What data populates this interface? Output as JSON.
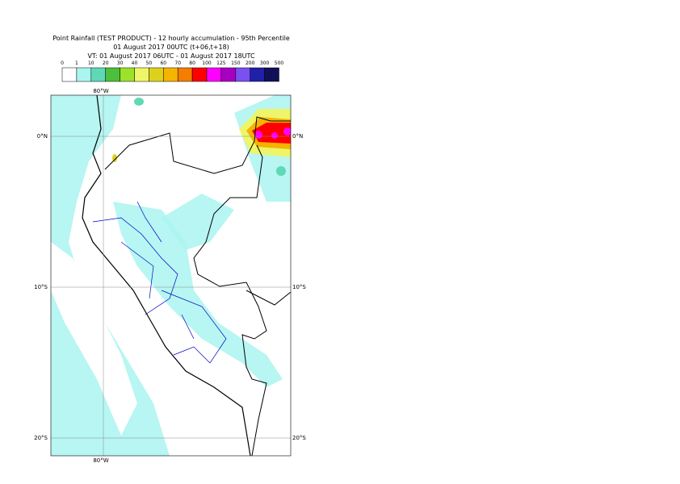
{
  "header": {
    "title_lines": [
      "Point Rainfall (TEST PRODUCT) - 12 hourly accumulation - 95th Percentile",
      "01 August 2017 00UTC (t+06,t+18)",
      "VT: 01 August 2017 06UTC - 01 August 2017 18UTC"
    ]
  },
  "legend": {
    "labels": [
      "0",
      "1",
      "10",
      "20",
      "30",
      "40",
      "50",
      "60",
      "70",
      "80",
      "100",
      "125",
      "150",
      "200",
      "300",
      "500"
    ],
    "colors": [
      "#ffffff",
      "#aaf5f0",
      "#5fd9b5",
      "#4cbf3c",
      "#9be22a",
      "#eef56a",
      "#dcd21e",
      "#f5b400",
      "#f57d00",
      "#ff0000",
      "#ff00ff",
      "#a800c0",
      "#7a50f0",
      "#2020a8",
      "#101058"
    ]
  },
  "map": {
    "top_labels": [
      "80°W"
    ],
    "bottom_labels": [
      "80°W"
    ],
    "left_labels": [
      "0°N",
      "10°S",
      "20°S"
    ],
    "right_labels": [
      "0°N",
      "10°S",
      "20°S"
    ]
  }
}
